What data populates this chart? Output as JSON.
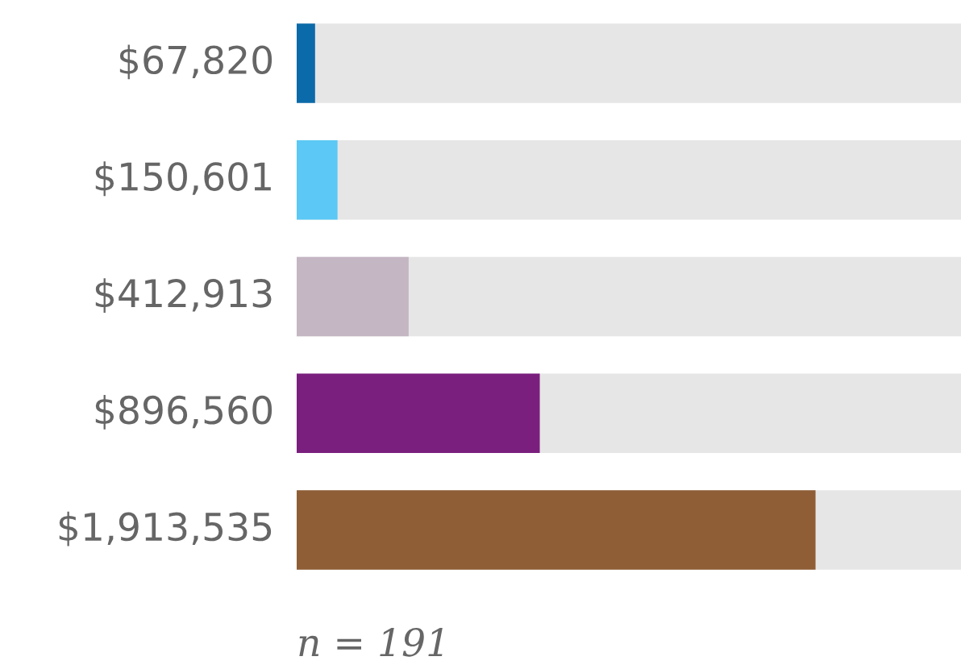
{
  "chart_data": {
    "type": "bar",
    "orientation": "horizontal",
    "categories": [
      null,
      null,
      null,
      null,
      null
    ],
    "values": [
      67820,
      150601,
      412913,
      896560,
      1913535
    ],
    "colors": [
      "#0b6aa9",
      "#5bc8f5",
      "#c5b6c3",
      "#7b1f7e",
      "#8f5e36"
    ],
    "value_labels": [
      "$67,820",
      "$150,601",
      "$412,913",
      "$896,560",
      "$1,913,535"
    ],
    "xlim": [
      0,
      2450000
    ],
    "grid": false,
    "legend": false,
    "annotations": [
      "n = 191"
    ]
  }
}
